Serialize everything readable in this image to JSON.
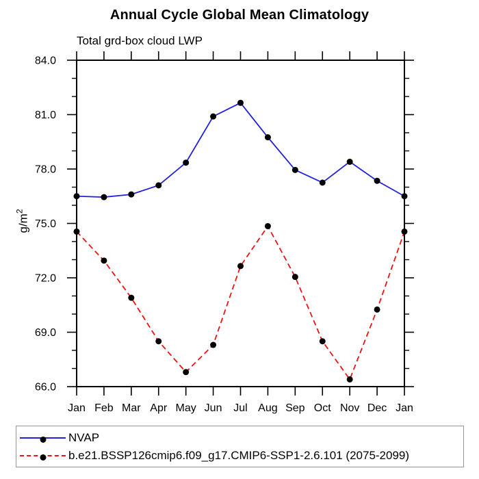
{
  "chart_data": {
    "type": "line",
    "title": "Annual Cycle Global Mean Climatology",
    "subtitle": "Total grd-box cloud LWP",
    "ylabel_base": "g/m",
    "ylabel_sup": "2",
    "ylabel_text": "g/m²",
    "x_categories": [
      "Jan",
      "Feb",
      "Mar",
      "Apr",
      "May",
      "Jun",
      "Jul",
      "Aug",
      "Sep",
      "Oct",
      "Nov",
      "Dec",
      "Jan"
    ],
    "ylim": [
      66.0,
      84.0
    ],
    "ytick_values": [
      84,
      81,
      78,
      75,
      72,
      69,
      66
    ],
    "ytick_labels": [
      "84.0",
      "81.0",
      "78.0",
      "75.0",
      "72.0",
      "69.0",
      "66.0"
    ],
    "minor_tick_step": 1.0,
    "grid": "off",
    "legend_position": "bottom-left-box",
    "axis_color": "#000000",
    "marker_shape": "filled-circle",
    "series": [
      {
        "name": "NVAP",
        "color": "#2222dd",
        "line_style": "solid",
        "marker_color": "#000000",
        "values": [
          76.5,
          76.45,
          76.6,
          77.1,
          78.35,
          80.9,
          81.65,
          79.75,
          77.95,
          77.25,
          78.4,
          77.35,
          76.5
        ]
      },
      {
        "name": "b.e21.BSSP126cmip6.f09_g17.CMIP6-SSP1-2.6.101 (2075-2099)",
        "color": "#ee1111",
        "line_style": "dashed",
        "marker_color": "#000000",
        "values": [
          74.55,
          72.95,
          70.9,
          68.5,
          66.8,
          68.3,
          72.65,
          74.85,
          72.05,
          68.5,
          66.4,
          70.25,
          74.55
        ]
      }
    ]
  }
}
